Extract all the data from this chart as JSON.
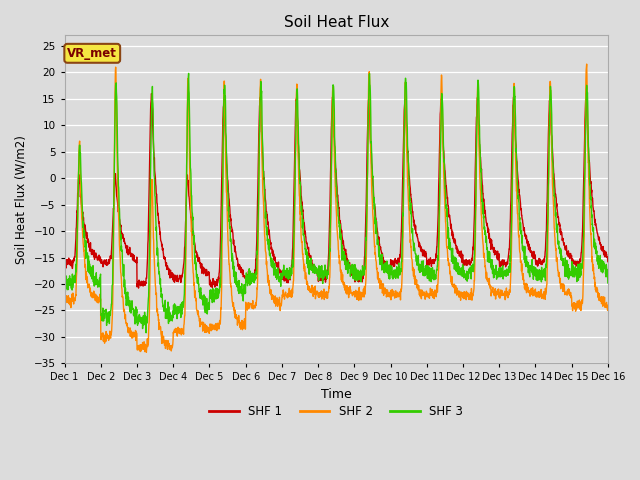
{
  "title": "Soil Heat Flux",
  "xlabel": "Time",
  "ylabel": "Soil Heat Flux (W/m2)",
  "ylim": [
    -35,
    27
  ],
  "yticks": [
    -35,
    -30,
    -25,
    -20,
    -15,
    -10,
    -5,
    0,
    5,
    10,
    15,
    20,
    25
  ],
  "colors": {
    "SHF 1": "#cc0000",
    "SHF 2": "#ff8800",
    "SHF 3": "#33cc00"
  },
  "legend_label": "VR_met",
  "bg_color": "#dcdcdc",
  "n_days": 15,
  "linewidth": 1.0,
  "figsize": [
    6.4,
    4.8
  ],
  "dpi": 100
}
